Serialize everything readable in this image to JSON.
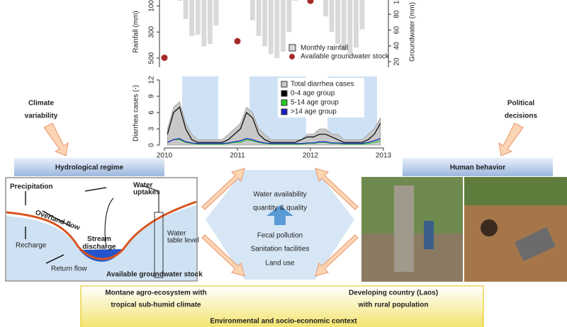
{
  "chart_data": [
    {
      "type": "bar",
      "ylabel": "Rainfall (mm)",
      "y2label": "Groundwater (mm)",
      "xlim": [
        2010,
        2013
      ],
      "ylim": [
        0,
        570
      ],
      "y_inverted": true,
      "yticks": [
        100,
        300,
        500
      ],
      "y2lim": [
        13,
        107
      ],
      "y2ticks": [
        20,
        40,
        60,
        80,
        100
      ],
      "series": [
        {
          "name": "Monthly rainfall",
          "color": "#d9d9d9",
          "values": [
            0,
            0,
            60,
            200,
            330,
            320,
            410,
            390,
            250,
            40,
            0,
            0,
            0,
            40,
            210,
            330,
            410,
            470,
            500,
            450,
            300,
            60,
            0,
            0,
            0,
            30,
            180,
            300,
            390,
            440,
            470,
            420,
            280,
            50,
            0,
            0
          ]
        },
        {
          "name": "Available groundwater stock",
          "color": "#a52a2a",
          "axis": "y2",
          "x": [
            2010,
            2011,
            2012
          ],
          "values": [
            25,
            46,
            97
          ]
        }
      ]
    },
    {
      "type": "line",
      "ylabel": "Diarrhea cases (-)",
      "xlim": [
        2010,
        2013
      ],
      "xticks": [
        2010,
        2011,
        2012,
        2013
      ],
      "ylim": [
        0,
        12
      ],
      "yticks": [
        0,
        3,
        6,
        9,
        12
      ],
      "series": [
        {
          "name": "Total diarrhea cases",
          "color": "#c8c8c8",
          "values": [
            3,
            7,
            8,
            4,
            2,
            1,
            1,
            1,
            1,
            1,
            2,
            3,
            4,
            7,
            6,
            3,
            2,
            1,
            1,
            1,
            1,
            1,
            1,
            2,
            2,
            3,
            3,
            2,
            2,
            1,
            1,
            1,
            1,
            2,
            3,
            5
          ]
        },
        {
          "name": "0-4 age group",
          "color": "#000000",
          "values": [
            2,
            6,
            7,
            3,
            1,
            0.5,
            0.5,
            0.5,
            0.5,
            0.5,
            1,
            2,
            3,
            6,
            5,
            2,
            1,
            0.5,
            0.5,
            0.5,
            0.5,
            0.5,
            1,
            1.5,
            1.5,
            2,
            2,
            1.5,
            1,
            0.5,
            0.5,
            0.5,
            0.5,
            1,
            2,
            4
          ]
        },
        {
          "name": "5-14 age group",
          "color": "#22cc22",
          "values": [
            0.5,
            1,
            1,
            0.5,
            0.3,
            0.2,
            0.2,
            0.2,
            0.2,
            0.2,
            0.3,
            0.5,
            0.5,
            1,
            0.8,
            0.5,
            0.3,
            0.2,
            0.2,
            0.2,
            0.2,
            0.2,
            0.2,
            0.3,
            0.3,
            0.5,
            0.5,
            0.3,
            0.3,
            0.2,
            0.2,
            0.2,
            0.2,
            0.3,
            0.5,
            0.8
          ]
        },
        {
          "name": ">14 age group",
          "color": "#1a1acc",
          "values": [
            0.5,
            1,
            1.2,
            0.6,
            0.4,
            0.3,
            0.3,
            0.3,
            0.3,
            0.3,
            0.4,
            0.6,
            0.8,
            1.2,
            1,
            0.6,
            0.4,
            0.3,
            0.3,
            0.3,
            0.3,
            0.3,
            0.3,
            0.4,
            0.4,
            0.6,
            0.6,
            0.4,
            0.4,
            0.3,
            0.3,
            0.3,
            0.3,
            0.5,
            0.8,
            1.2
          ]
        }
      ]
    }
  ],
  "diagram": {
    "climate": [
      "Climate",
      "variability"
    ],
    "political": [
      "Political",
      "decisions"
    ],
    "hydro_title": "Hydrological regime",
    "human_title": "Human behavior",
    "sketch": {
      "precipitation": "Precipitation",
      "overland": "Overland flow",
      "uptakes": [
        "Water",
        "uptakes"
      ],
      "recharge": "Recharge",
      "stream": [
        "Stream",
        "discharge"
      ],
      "table": [
        "Water",
        "table level"
      ],
      "return": "Return flow",
      "stock": "Available groundwater stock"
    },
    "center": [
      "Water availability",
      "quantity & quality",
      "Fecal pollution",
      "Sanitation facilities",
      "Land use"
    ],
    "context_left": [
      "Montane agro-ecosystem with",
      "tropical sub-humid climate"
    ],
    "context_right": [
      "Developing country (Laos)",
      "with rural population"
    ],
    "context_title": "Environmental and socio-economic context"
  }
}
